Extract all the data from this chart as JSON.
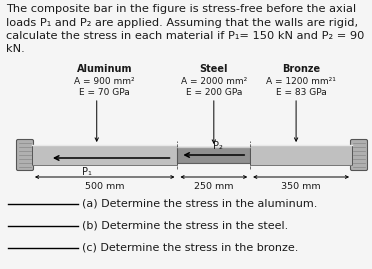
{
  "title_lines": [
    "The composite bar in the figure is stress-free before the axial",
    "loads P₁ and P₂ are applied. Assuming that the walls are rigid,",
    "calculate the stress in each material if P₁= 150 kN and P₂ = 90",
    "kN."
  ],
  "section_labels": [
    "Aluminum",
    "Steel",
    "Bronze"
  ],
  "section_A": [
    "A = 900 mm²",
    "A = 2000 mm²",
    "A = 1200 mm²¹"
  ],
  "section_E": [
    "E = 70 GPa",
    "E = 200 GPa",
    "E = 83 GPa"
  ],
  "dim_labels": [
    "500 mm",
    "250 mm",
    "350 mm"
  ],
  "force_labels": [
    "P₁",
    "P₂"
  ],
  "questions": [
    "(a) Determine the stress in the aluminum.",
    "(b) Determine the stress in the steel.",
    "(c) Determine the stress in the bronze."
  ],
  "seg_lengths": [
    500,
    250,
    350
  ],
  "bar_color_al": "#c0c0c0",
  "bar_color_br": "#c0c0c0",
  "bar_color_st": "#909090",
  "bar_edge": "#555555",
  "wall_color": "#b0b0b0",
  "wall_edge": "#555555",
  "background": "#f5f5f5",
  "text_color": "#1a1a1a",
  "font_size_title": 8.2,
  "font_size_labels": 7.0,
  "font_size_dim": 6.8,
  "font_size_q": 8.0
}
